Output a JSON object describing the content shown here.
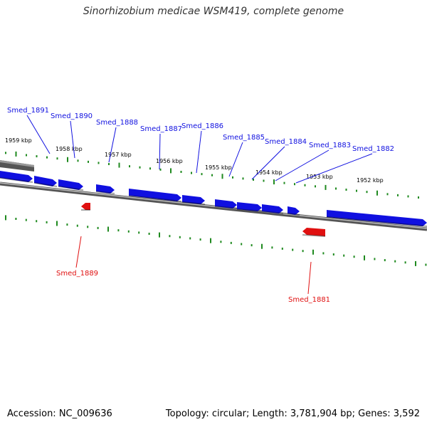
{
  "title": "Sinorhizobium medicae WSM419, complete genome",
  "footer": {
    "accession": "Accession: NC_009636",
    "summary": "Topology: circular; Length: 3,781,904 bp; Genes: 3,592"
  },
  "colors": {
    "forward_gene": "#1010e0",
    "reverse_gene": "#e01010",
    "tick": "#1f8a1f",
    "backbone": "#777777"
  },
  "kbp_labels": [
    "1959 kbp",
    "1958 kbp",
    "1957 kbp",
    "1956 kbp",
    "1955 kbp",
    "1954 kbp",
    "1953 kbp",
    "1952 kbp"
  ],
  "forward_genes": [
    {
      "label": "Smed_1891"
    },
    {
      "label": "Smed_1890"
    },
    {
      "label": "Smed_1888"
    },
    {
      "label": "Smed_1887"
    },
    {
      "label": "Smed_1886"
    },
    {
      "label": "Smed_1885"
    },
    {
      "label": "Smed_1884"
    },
    {
      "label": "Smed_1883"
    },
    {
      "label": "Smed_1882"
    }
  ],
  "reverse_genes": [
    {
      "label": "Smed_1889"
    },
    {
      "label": "Smed_1881"
    }
  ]
}
